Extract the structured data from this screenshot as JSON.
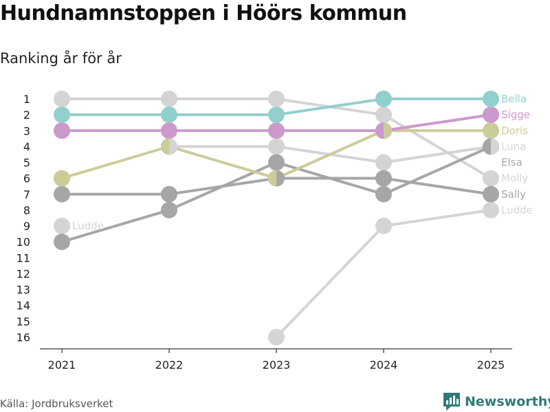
{
  "title": "Hundnamnstoppen i Höörs kommun",
  "subtitle": "Ranking år för år",
  "source": "Källa: Jordbruksverket",
  "brand": "Newsworthy",
  "colors": {
    "Bella": "#93cfcc",
    "Sigge": "#cc99cc",
    "Doris": "#cccc99",
    "grey_light": "#d4d4d4",
    "grey_dark": "#a6a6a6",
    "axis": "#555555",
    "brand": "#2f7a79"
  },
  "chart_data": {
    "type": "line",
    "subtype": "bump",
    "title": "Hundnamnstoppen i Höörs kommun",
    "subtitle": "Ranking år för år",
    "x": [
      "2021",
      "2022",
      "2023",
      "2024",
      "2025"
    ],
    "y_ticks": [
      "1",
      "2",
      "3",
      "4",
      "5",
      "6",
      "7",
      "8",
      "9",
      "10",
      "11",
      "12",
      "13",
      "14",
      "15",
      "16"
    ],
    "y_range": [
      1,
      16
    ],
    "y_reversed": true,
    "series": [
      {
        "name": "Ludde",
        "color_key": "grey_light",
        "values": [
          9,
          null,
          16,
          9,
          8
        ],
        "start_label": "Ludde",
        "end_label": "Ludde"
      },
      {
        "name": "Molly",
        "color_key": "grey_light",
        "values": [
          1,
          1,
          1,
          2,
          6
        ],
        "end_label": "Molly"
      },
      {
        "name": "Luna",
        "color_key": "grey_light",
        "values": [
          null,
          4,
          4,
          5,
          4
        ],
        "end_label": "Luna"
      },
      {
        "name": "Elsa",
        "color_key": "grey_dark",
        "values": [
          10,
          8,
          5,
          7,
          4
        ],
        "end_label": "Elsa",
        "end_label_value": 5
      },
      {
        "name": "Sally",
        "color_key": "grey_dark",
        "values": [
          7,
          7,
          6,
          6,
          7
        ],
        "end_label": "Sally"
      },
      {
        "name": "Doris",
        "color_key": "Doris",
        "values": [
          6,
          4,
          6,
          3,
          3
        ],
        "end_label": "Doris"
      },
      {
        "name": "Sigge",
        "color_key": "Sigge",
        "values": [
          3,
          3,
          3,
          3,
          2
        ],
        "end_label": "Sigge"
      },
      {
        "name": "Bella",
        "color_key": "Bella",
        "values": [
          2,
          2,
          2,
          1,
          1
        ],
        "end_label": "Bella"
      }
    ]
  }
}
